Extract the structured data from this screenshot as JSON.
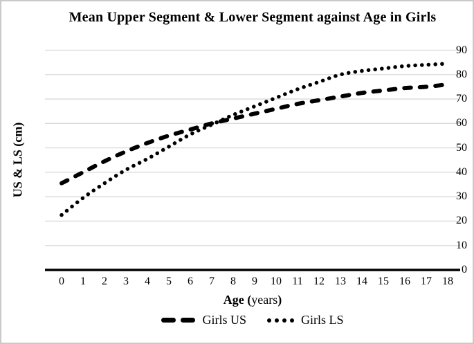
{
  "chart_data": {
    "type": "line",
    "title": "Mean Upper Segment & Lower Segment against Age in Girls",
    "xlabel": "Age (years)",
    "xlabel_parts": {
      "bold_prefix": "Age (",
      "regular": "years",
      "bold_suffix": ")"
    },
    "ylabel": "US & LS (cm)",
    "x": [
      0,
      1,
      2,
      3,
      4,
      5,
      6,
      7,
      8,
      9,
      10,
      11,
      12,
      13,
      14,
      15,
      16,
      17,
      18
    ],
    "xticks": [
      0,
      1,
      2,
      3,
      4,
      5,
      6,
      7,
      8,
      9,
      10,
      11,
      12,
      13,
      14,
      15,
      16,
      17,
      18
    ],
    "yticks": [
      0,
      10,
      20,
      30,
      40,
      50,
      60,
      70,
      80,
      90
    ],
    "ylim": [
      0,
      90
    ],
    "xlim": [
      0,
      18
    ],
    "grid": true,
    "legend_position": "bottom",
    "series": [
      {
        "name": "Girls US",
        "style": "dashed",
        "values": [
          35.5,
          40,
          44.5,
          48.5,
          52,
          55,
          57.5,
          60,
          62,
          64,
          66,
          68,
          69.5,
          71,
          72.5,
          73.5,
          74.5,
          75,
          76
        ]
      },
      {
        "name": "Girls LS",
        "style": "dotted",
        "values": [
          22.5,
          29.5,
          35.5,
          41,
          45.5,
          50.5,
          55.5,
          59.5,
          63.5,
          67,
          70.5,
          74,
          77,
          80,
          81.5,
          82.5,
          83.5,
          84,
          84.5
        ]
      }
    ],
    "colors": {
      "line": "#000000",
      "gridline": "#d9d9d9",
      "axis": "#000000",
      "background": "#ffffff",
      "frame_border": "#c9c9c9"
    }
  },
  "legend": {
    "items": [
      {
        "label": "Girls US",
        "marker": "dashed-line-sample"
      },
      {
        "label": "Girls LS",
        "marker": "dotted-line-sample"
      }
    ]
  }
}
